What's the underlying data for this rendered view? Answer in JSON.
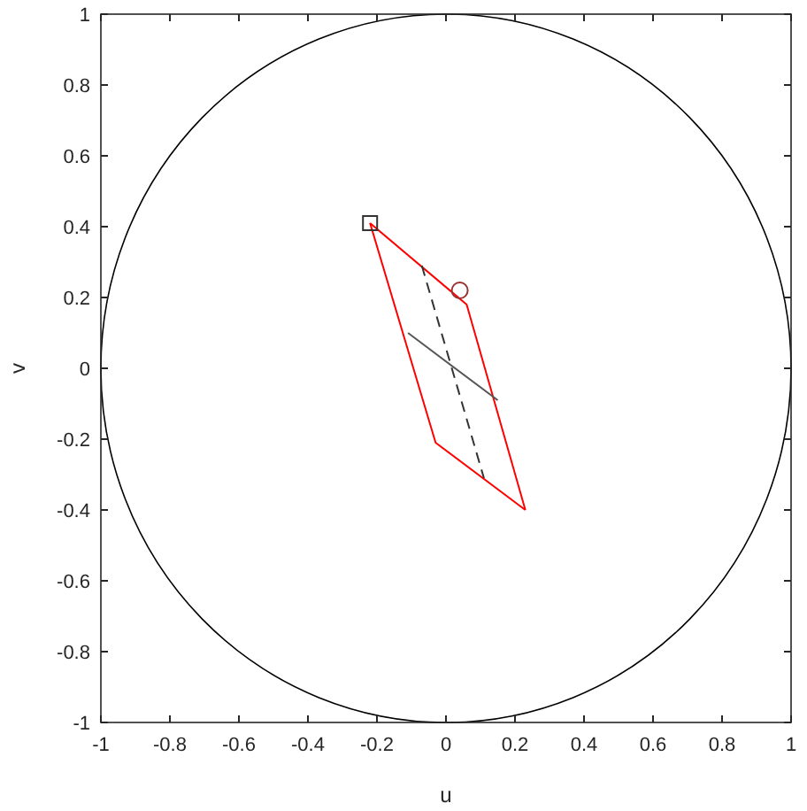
{
  "chart_data": {
    "type": "line",
    "xlabel": "u",
    "ylabel": "v",
    "xlim": [
      -1,
      1
    ],
    "ylim": [
      -1,
      1
    ],
    "xticks": [
      -1,
      -0.8,
      -0.6,
      -0.4,
      -0.2,
      0,
      0.2,
      0.4,
      0.6,
      0.8,
      1
    ],
    "yticks": [
      -1,
      -0.8,
      -0.6,
      -0.4,
      -0.2,
      0,
      0.2,
      0.4,
      0.6,
      0.8,
      1
    ],
    "marker": "none",
    "line_style": "solid",
    "series": [
      {
        "color": "#ff0000",
        "x": [
          -0.22,
          0.06,
          0.23
        ],
        "values": [
          0.41,
          0.18,
          -0.4
        ]
      },
      {
        "color": "#ff0000",
        "x": [
          -0.22,
          -0.03,
          0.23
        ],
        "values": [
          0.41,
          -0.21,
          -0.4
        ]
      },
      {
        "color": "#555555",
        "x": [
          -0.11,
          0.15
        ],
        "values": [
          0.1,
          -0.09
        ]
      },
      {
        "color": "#333333",
        "line_style": "dashed",
        "x": [
          -0.07,
          0.11
        ],
        "values": [
          0.29,
          -0.31
        ]
      },
      {
        "type": "scatter",
        "color": "#333333",
        "marker": "square",
        "x": [
          -0.22
        ],
        "values": [
          0.41
        ]
      },
      {
        "type": "scatter",
        "color": "#993333",
        "marker": "circle",
        "x": [
          0.04
        ],
        "values": [
          0.22
        ]
      }
    ]
  }
}
